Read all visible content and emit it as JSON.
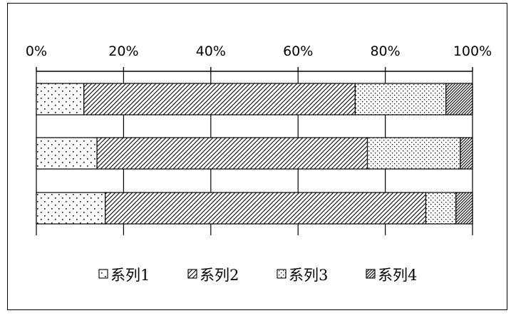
{
  "chart_data": {
    "type": "bar",
    "orientation": "horizontal",
    "stacking": "percent",
    "x_ticks": [
      "0%",
      "20%",
      "40%",
      "60%",
      "80%",
      "100%"
    ],
    "xlim": [
      0,
      100
    ],
    "grid": true,
    "legend_position": "bottom",
    "series": [
      {
        "name": "系列1",
        "pattern": "sparse-dots",
        "values": [
          10.9,
          13.9,
          15.8
        ]
      },
      {
        "name": "系列2",
        "pattern": "diagonal-hatch",
        "values": [
          62.2,
          62.0,
          73.5
        ]
      },
      {
        "name": "系列3",
        "pattern": "dense-dots",
        "values": [
          20.8,
          21.3,
          6.9
        ]
      },
      {
        "name": "系列4",
        "pattern": "dense-hatch",
        "values": [
          6.1,
          2.8,
          3.8
        ]
      }
    ],
    "colors": {
      "line": "#000000",
      "background": "#ffffff"
    }
  }
}
